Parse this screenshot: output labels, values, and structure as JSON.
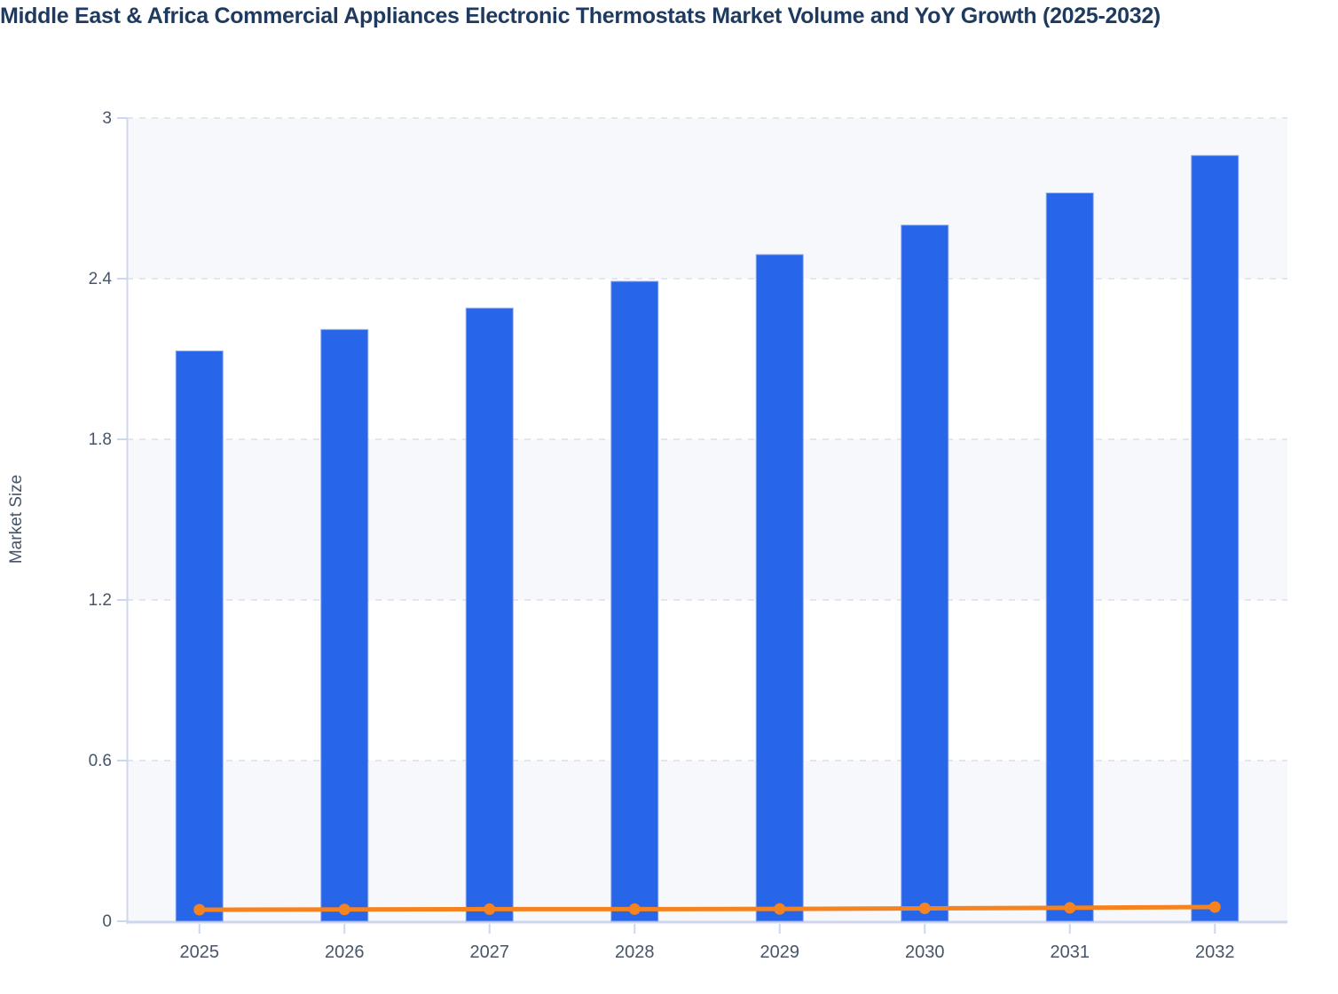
{
  "chart_data": {
    "type": "bar+line",
    "title": "Middle East & Africa Commercial Appliances Electronic Thermostats Market Volume and YoY Growth (2025-2032)",
    "categories": [
      "2025",
      "2026",
      "2027",
      "2028",
      "2029",
      "2030",
      "2031",
      "2032"
    ],
    "series": [
      {
        "name": "Market Volume",
        "type": "bar",
        "color": "#2766e9",
        "values": [
          2.13,
          2.21,
          2.29,
          2.39,
          2.49,
          2.6,
          2.72,
          2.86
        ]
      },
      {
        "name": "YoY Growth",
        "type": "line",
        "color": "#f5831f",
        "values_percent": [
          4.3,
          4.4,
          4.5,
          4.5,
          4.6,
          4.8,
          5.0,
          5.3
        ]
      }
    ],
    "xlabel": "",
    "ylabel": "Market Size",
    "ylim": [
      0,
      3
    ],
    "yticks": {
      "values": [
        0,
        0.6,
        1.2,
        1.8,
        2.4,
        3
      ],
      "labels": [
        "0",
        "0.6",
        "1.2",
        "1.8",
        "2.4",
        "3"
      ]
    },
    "grid": {
      "horizontal_dashed": true,
      "alternating_bands": true
    },
    "legend": "none",
    "style": {
      "background": "#ffffff",
      "band_color": "#f6f8fb",
      "grid_color": "#e2e7ef",
      "axis_line_color": "#ccd7ee",
      "axis_text_color": "#475569",
      "title_color": "#1e3a5f",
      "bar_edge_color": "#8fa9ef"
    }
  }
}
